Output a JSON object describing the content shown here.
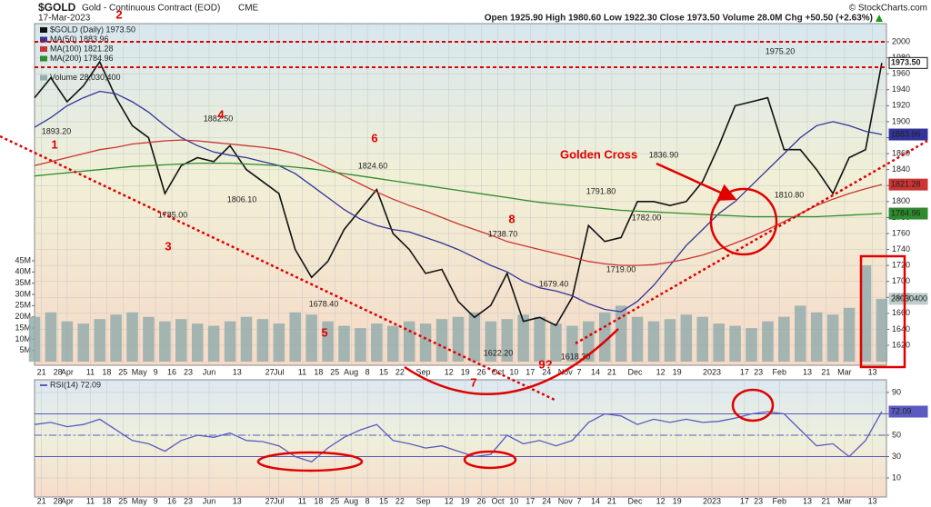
{
  "header": {
    "symbol": "$GOLD",
    "title": "Gold - Continuous Contract (EOD)",
    "exchange": "CME",
    "date": "17-Mar-2023",
    "quote": "Open 1925.90 High 1980.60 Low 1922.30 Close 1973.50 Volume 28.0M Chg +50.50 (+2.63%)",
    "credit": "© StockCharts.com"
  },
  "chart_data": [
    {
      "type": "line",
      "grid": true,
      "x": [
        0,
        7,
        14,
        21,
        28,
        35,
        42,
        49,
        56,
        63,
        70,
        77,
        84,
        91,
        98,
        105,
        112,
        119,
        126,
        133,
        140,
        147,
        154,
        161,
        168,
        175,
        182,
        189,
        196,
        203,
        210,
        217,
        224,
        231,
        238,
        245,
        252,
        259,
        266,
        273,
        280,
        287,
        294,
        301,
        308,
        315,
        322,
        329,
        336,
        343,
        350,
        357,
        364
      ],
      "series": [
        {
          "name": "$GOLD (Daily) 1973.50",
          "color": "#111111",
          "last_label": "1973.50",
          "values": [
            1930,
            1955,
            1925,
            1945,
            1975,
            1930,
            1895,
            1880,
            1810,
            1845,
            1855,
            1850,
            1870,
            1840,
            1825,
            1810,
            1740,
            1705,
            1725,
            1765,
            1790,
            1815,
            1760,
            1740,
            1710,
            1715,
            1675,
            1655,
            1670,
            1710,
            1650,
            1655,
            1645,
            1680,
            1770,
            1750,
            1755,
            1800,
            1800,
            1795,
            1800,
            1825,
            1870,
            1920,
            1925,
            1930,
            1865,
            1865,
            1840,
            1810,
            1855,
            1865,
            1973.5
          ]
        },
        {
          "name": "MA(50) 1883.96",
          "color": "#33339a",
          "last_label": "1883.96",
          "values": [
            1893,
            1905,
            1920,
            1930,
            1938,
            1935,
            1925,
            1912,
            1895,
            1880,
            1870,
            1862,
            1858,
            1855,
            1850,
            1845,
            1835,
            1820,
            1805,
            1790,
            1778,
            1770,
            1765,
            1762,
            1755,
            1748,
            1740,
            1730,
            1720,
            1712,
            1700,
            1692,
            1688,
            1682,
            1672,
            1665,
            1662,
            1675,
            1695,
            1720,
            1745,
            1765,
            1785,
            1800,
            1820,
            1840,
            1860,
            1880,
            1895,
            1900,
            1895,
            1888,
            1883.96
          ]
        },
        {
          "name": "MA(100) 1821.28",
          "color": "#cc3333",
          "last_label": "1821.28",
          "values": [
            1845,
            1850,
            1855,
            1860,
            1865,
            1868,
            1872,
            1874,
            1876,
            1877,
            1876,
            1874,
            1872,
            1870,
            1868,
            1865,
            1860,
            1852,
            1842,
            1832,
            1822,
            1812,
            1803,
            1795,
            1788,
            1780,
            1772,
            1765,
            1758,
            1750,
            1745,
            1740,
            1735,
            1730,
            1725,
            1722,
            1720,
            1720,
            1721,
            1724,
            1728,
            1733,
            1740,
            1748,
            1756,
            1765,
            1775,
            1785,
            1795,
            1803,
            1810,
            1816,
            1821.28
          ]
        },
        {
          "name": "MA(200) 1784.96",
          "color": "#2e8b2e",
          "last_label": "1784.96",
          "values": [
            1832,
            1834,
            1836,
            1838,
            1840,
            1842,
            1844,
            1845,
            1846,
            1847,
            1848,
            1848,
            1848,
            1847,
            1846,
            1845,
            1843,
            1841,
            1838,
            1835,
            1832,
            1829,
            1826,
            1823,
            1820,
            1817,
            1814,
            1811,
            1808,
            1805,
            1802,
            1799,
            1797,
            1795,
            1793,
            1791,
            1789,
            1788,
            1787,
            1786,
            1785,
            1784,
            1783,
            1782,
            1781,
            1781,
            1781,
            1781,
            1781,
            1782,
            1783,
            1784,
            1784.96
          ]
        },
        {
          "name": "Volume 28,030,400",
          "color": "#94adad",
          "type": "bar",
          "axis": "y2",
          "last_label": "28030400",
          "values": [
            20,
            22,
            18,
            17,
            19,
            21,
            22,
            20,
            18,
            19,
            17,
            16,
            18,
            20,
            19,
            17,
            22,
            21,
            18,
            16,
            15,
            17,
            16,
            18,
            17,
            19,
            20,
            22,
            18,
            19,
            21,
            20,
            17,
            16,
            18,
            22,
            25,
            20,
            18,
            19,
            21,
            20,
            17,
            16,
            15,
            18,
            20,
            25,
            22,
            21,
            24,
            43,
            28.0304
          ]
        }
      ],
      "xlim": [
        0,
        366
      ],
      "xticks": [
        {
          "value": 3,
          "label": "21"
        },
        {
          "value": 10,
          "label": "28"
        },
        {
          "value": 14,
          "label": "Apr"
        },
        {
          "value": 24,
          "label": "11"
        },
        {
          "value": 31,
          "label": "18"
        },
        {
          "value": 38,
          "label": "25"
        },
        {
          "value": 45,
          "label": "May"
        },
        {
          "value": 52,
          "label": "9"
        },
        {
          "value": 59,
          "label": "16"
        },
        {
          "value": 66,
          "label": "23"
        },
        {
          "value": 75,
          "label": "Jun"
        },
        {
          "value": 87,
          "label": "13"
        },
        {
          "value": 101,
          "label": "27"
        },
        {
          "value": 105,
          "label": "Jul"
        },
        {
          "value": 115,
          "label": "11"
        },
        {
          "value": 122,
          "label": "18"
        },
        {
          "value": 129,
          "label": "25"
        },
        {
          "value": 136,
          "label": "Aug"
        },
        {
          "value": 143,
          "label": "8"
        },
        {
          "value": 150,
          "label": "15"
        },
        {
          "value": 157,
          "label": "22"
        },
        {
          "value": 167,
          "label": "Sep"
        },
        {
          "value": 178,
          "label": "12"
        },
        {
          "value": 185,
          "label": "19"
        },
        {
          "value": 192,
          "label": "26"
        },
        {
          "value": 199,
          "label": "Oct"
        },
        {
          "value": 206,
          "label": "10"
        },
        {
          "value": 213,
          "label": "17"
        },
        {
          "value": 220,
          "label": "24"
        },
        {
          "value": 228,
          "label": "Nov"
        },
        {
          "value": 234,
          "label": "7"
        },
        {
          "value": 241,
          "label": "14"
        },
        {
          "value": 248,
          "label": "21"
        },
        {
          "value": 258,
          "label": "Dec"
        },
        {
          "value": 269,
          "label": "12"
        },
        {
          "value": 276,
          "label": "19"
        },
        {
          "value": 291,
          "label": "2023"
        },
        {
          "value": 305,
          "label": "17"
        },
        {
          "value": 311,
          "label": "23"
        },
        {
          "value": 320,
          "label": "Feb"
        },
        {
          "value": 332,
          "label": "13"
        },
        {
          "value": 340,
          "label": "21"
        },
        {
          "value": 348,
          "label": "Mar"
        },
        {
          "value": 360,
          "label": "13"
        }
      ],
      "ylim": [
        1595,
        2022.8
      ],
      "yticks": [
        1620,
        1640,
        1660,
        1680,
        1700,
        1720,
        1740,
        1760,
        1780,
        1800,
        1820,
        1840,
        1860,
        1880,
        1900,
        1920,
        1940,
        1960,
        1980,
        2000
      ],
      "y2lim": [
        -1.6,
        150.8
      ],
      "y2ticks": [
        {
          "value": 5,
          "label": "5M"
        },
        {
          "value": 10,
          "label": "10M"
        },
        {
          "value": 15,
          "label": "15M"
        },
        {
          "value": 20,
          "label": "20M"
        },
        {
          "value": 25,
          "label": "25M"
        },
        {
          "value": 30,
          "label": "30M"
        },
        {
          "value": 35,
          "label": "35M"
        },
        {
          "value": 40,
          "label": "40M"
        },
        {
          "value": 45,
          "label": "45M"
        }
      ],
      "price_labels": [
        "1893.20",
        "1882.50",
        "1806.10",
        "1785.00",
        "1678.40",
        "1824.60",
        "1738.70",
        "1622.20",
        "1679.40",
        "1618.30",
        "1791.80",
        "1782.00",
        "1719.00",
        "1836.90",
        "1975.20",
        "1810.80"
      ],
      "notes": [
        "1",
        "2",
        "3",
        "4",
        "5",
        "6",
        "7",
        "8",
        "9?",
        "Golden Cross"
      ]
    },
    {
      "type": "line",
      "grid": true,
      "title": "RSI(14) 72.09",
      "overbought": 70,
      "oversold": 30,
      "midline": 50,
      "x": [
        0,
        7,
        14,
        21,
        28,
        35,
        42,
        49,
        56,
        63,
        70,
        77,
        84,
        91,
        98,
        105,
        112,
        119,
        126,
        133,
        140,
        147,
        154,
        161,
        168,
        175,
        182,
        189,
        196,
        203,
        210,
        217,
        224,
        231,
        238,
        245,
        252,
        259,
        266,
        273,
        280,
        287,
        294,
        301,
        308,
        315,
        322,
        329,
        336,
        343,
        350,
        357,
        364
      ],
      "series": [
        {
          "name": "RSI(14)",
          "color": "#5a5ac0",
          "last_label": "72.09",
          "values": [
            60,
            62,
            58,
            60,
            65,
            55,
            45,
            42,
            35,
            45,
            50,
            48,
            52,
            45,
            44,
            40,
            30,
            25,
            38,
            48,
            55,
            60,
            45,
            42,
            38,
            40,
            35,
            30,
            32,
            50,
            42,
            45,
            40,
            45,
            62,
            70,
            68,
            60,
            65,
            62,
            65,
            62,
            63,
            66,
            70,
            72,
            70,
            55,
            40,
            42,
            30,
            45,
            72.09
          ]
        }
      ],
      "xlim": [
        0,
        366
      ],
      "xticks": [
        {
          "value": 3,
          "label": "21"
        },
        {
          "value": 10,
          "label": "28"
        },
        {
          "value": 14,
          "label": "Apr"
        },
        {
          "value": 24,
          "label": "11"
        },
        {
          "value": 31,
          "label": "18"
        },
        {
          "value": 38,
          "label": "25"
        },
        {
          "value": 45,
          "label": "May"
        },
        {
          "value": 52,
          "label": "9"
        },
        {
          "value": 59,
          "label": "16"
        },
        {
          "value": 66,
          "label": "23"
        },
        {
          "value": 75,
          "label": "Jun"
        },
        {
          "value": 87,
          "label": "13"
        },
        {
          "value": 101,
          "label": "27"
        },
        {
          "value": 105,
          "label": "Jul"
        },
        {
          "value": 115,
          "label": "11"
        },
        {
          "value": 122,
          "label": "18"
        },
        {
          "value": 129,
          "label": "25"
        },
        {
          "value": 136,
          "label": "Aug"
        },
        {
          "value": 143,
          "label": "8"
        },
        {
          "value": 150,
          "label": "15"
        },
        {
          "value": 157,
          "label": "22"
        },
        {
          "value": 167,
          "label": "Sep"
        },
        {
          "value": 178,
          "label": "12"
        },
        {
          "value": 185,
          "label": "19"
        },
        {
          "value": 192,
          "label": "26"
        },
        {
          "value": 199,
          "label": "Oct"
        },
        {
          "value": 206,
          "label": "10"
        },
        {
          "value": 213,
          "label": "17"
        },
        {
          "value": 220,
          "label": "24"
        },
        {
          "value": 228,
          "label": "Nov"
        },
        {
          "value": 234,
          "label": "7"
        },
        {
          "value": 241,
          "label": "14"
        },
        {
          "value": 248,
          "label": "21"
        },
        {
          "value": 258,
          "label": "Dec"
        },
        {
          "value": 269,
          "label": "12"
        },
        {
          "value": 276,
          "label": "19"
        },
        {
          "value": 291,
          "label": "2023"
        },
        {
          "value": 305,
          "label": "17"
        },
        {
          "value": 311,
          "label": "23"
        },
        {
          "value": 320,
          "label": "Feb"
        },
        {
          "value": 332,
          "label": "13"
        },
        {
          "value": 340,
          "label": "21"
        },
        {
          "value": 348,
          "label": "Mar"
        },
        {
          "value": 360,
          "label": "13"
        }
      ],
      "ylim": [
        -7.9,
        101.9
      ],
      "yticks": [
        10,
        30,
        50,
        70,
        90
      ]
    }
  ]
}
